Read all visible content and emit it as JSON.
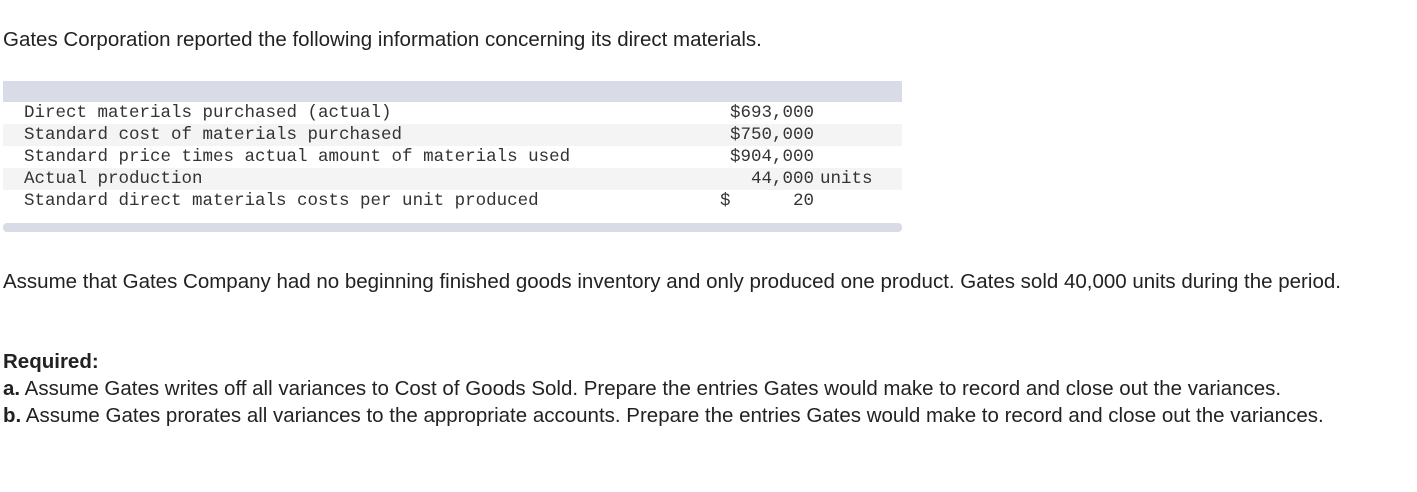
{
  "intro": "Gates Corporation reported the following information concerning its direct materials.",
  "table": {
    "rows": [
      {
        "label": "Direct materials purchased (actual)",
        "value": "$693,000",
        "unit": "",
        "dollar": ""
      },
      {
        "label": "Standard cost of materials purchased",
        "value": "$750,000",
        "unit": "",
        "dollar": ""
      },
      {
        "label": "Standard price times actual amount of materials used",
        "value": "$904,000",
        "unit": "",
        "dollar": ""
      },
      {
        "label": "Actual production",
        "value": "44,000",
        "unit": "units",
        "dollar": ""
      },
      {
        "label": "Standard direct materials costs per unit produced",
        "value": "20",
        "unit": "",
        "dollar": "$"
      }
    ]
  },
  "assume": "Assume that Gates Company had no beginning finished goods inventory and only produced one product. Gates sold 40,000 units during the period.",
  "required": {
    "heading": "Required:",
    "a_label": "a.",
    "a_text": " Assume Gates writes off all variances to Cost of Goods Sold. Prepare the entries Gates would make to record and close out the variances.",
    "b_label": "b.",
    "b_text": " Assume Gates prorates all variances to the appropriate accounts. Prepare the entries Gates would make to record and close out the variances."
  }
}
